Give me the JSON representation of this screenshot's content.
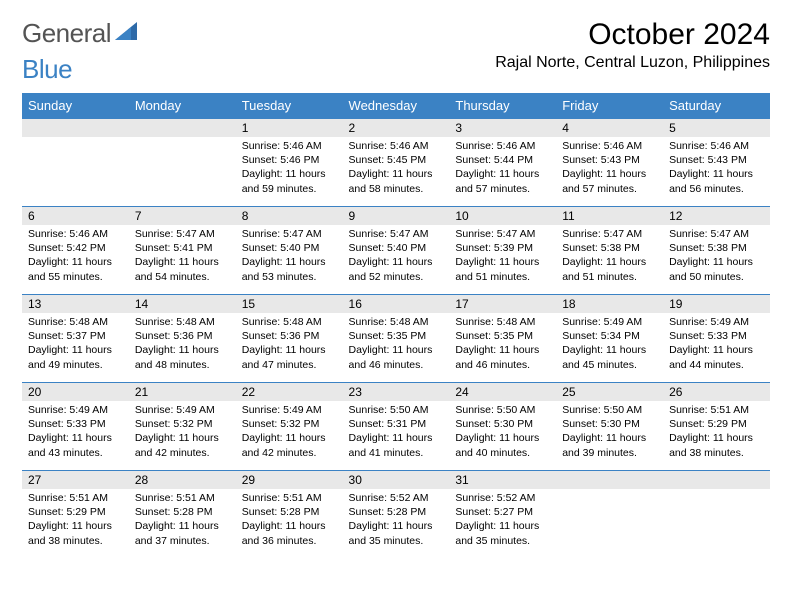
{
  "logo": {
    "part1": "General",
    "part2": "Blue"
  },
  "title": "October 2024",
  "location": "Rajal Norte, Central Luzon, Philippines",
  "colors": {
    "header_bg": "#3b82c4",
    "header_text": "#ffffff",
    "daynum_bg": "#e8e8e8",
    "border": "#3b82c4",
    "logo_gray": "#545454",
    "logo_blue": "#3b82c4"
  },
  "weekdays": [
    "Sunday",
    "Monday",
    "Tuesday",
    "Wednesday",
    "Thursday",
    "Friday",
    "Saturday"
  ],
  "weeks": [
    [
      null,
      null,
      {
        "n": "1",
        "sr": "5:46 AM",
        "ss": "5:46 PM",
        "dl": "11 hours and 59 minutes."
      },
      {
        "n": "2",
        "sr": "5:46 AM",
        "ss": "5:45 PM",
        "dl": "11 hours and 58 minutes."
      },
      {
        "n": "3",
        "sr": "5:46 AM",
        "ss": "5:44 PM",
        "dl": "11 hours and 57 minutes."
      },
      {
        "n": "4",
        "sr": "5:46 AM",
        "ss": "5:43 PM",
        "dl": "11 hours and 57 minutes."
      },
      {
        "n": "5",
        "sr": "5:46 AM",
        "ss": "5:43 PM",
        "dl": "11 hours and 56 minutes."
      }
    ],
    [
      {
        "n": "6",
        "sr": "5:46 AM",
        "ss": "5:42 PM",
        "dl": "11 hours and 55 minutes."
      },
      {
        "n": "7",
        "sr": "5:47 AM",
        "ss": "5:41 PM",
        "dl": "11 hours and 54 minutes."
      },
      {
        "n": "8",
        "sr": "5:47 AM",
        "ss": "5:40 PM",
        "dl": "11 hours and 53 minutes."
      },
      {
        "n": "9",
        "sr": "5:47 AM",
        "ss": "5:40 PM",
        "dl": "11 hours and 52 minutes."
      },
      {
        "n": "10",
        "sr": "5:47 AM",
        "ss": "5:39 PM",
        "dl": "11 hours and 51 minutes."
      },
      {
        "n": "11",
        "sr": "5:47 AM",
        "ss": "5:38 PM",
        "dl": "11 hours and 51 minutes."
      },
      {
        "n": "12",
        "sr": "5:47 AM",
        "ss": "5:38 PM",
        "dl": "11 hours and 50 minutes."
      }
    ],
    [
      {
        "n": "13",
        "sr": "5:48 AM",
        "ss": "5:37 PM",
        "dl": "11 hours and 49 minutes."
      },
      {
        "n": "14",
        "sr": "5:48 AM",
        "ss": "5:36 PM",
        "dl": "11 hours and 48 minutes."
      },
      {
        "n": "15",
        "sr": "5:48 AM",
        "ss": "5:36 PM",
        "dl": "11 hours and 47 minutes."
      },
      {
        "n": "16",
        "sr": "5:48 AM",
        "ss": "5:35 PM",
        "dl": "11 hours and 46 minutes."
      },
      {
        "n": "17",
        "sr": "5:48 AM",
        "ss": "5:35 PM",
        "dl": "11 hours and 46 minutes."
      },
      {
        "n": "18",
        "sr": "5:49 AM",
        "ss": "5:34 PM",
        "dl": "11 hours and 45 minutes."
      },
      {
        "n": "19",
        "sr": "5:49 AM",
        "ss": "5:33 PM",
        "dl": "11 hours and 44 minutes."
      }
    ],
    [
      {
        "n": "20",
        "sr": "5:49 AM",
        "ss": "5:33 PM",
        "dl": "11 hours and 43 minutes."
      },
      {
        "n": "21",
        "sr": "5:49 AM",
        "ss": "5:32 PM",
        "dl": "11 hours and 42 minutes."
      },
      {
        "n": "22",
        "sr": "5:49 AM",
        "ss": "5:32 PM",
        "dl": "11 hours and 42 minutes."
      },
      {
        "n": "23",
        "sr": "5:50 AM",
        "ss": "5:31 PM",
        "dl": "11 hours and 41 minutes."
      },
      {
        "n": "24",
        "sr": "5:50 AM",
        "ss": "5:30 PM",
        "dl": "11 hours and 40 minutes."
      },
      {
        "n": "25",
        "sr": "5:50 AM",
        "ss": "5:30 PM",
        "dl": "11 hours and 39 minutes."
      },
      {
        "n": "26",
        "sr": "5:51 AM",
        "ss": "5:29 PM",
        "dl": "11 hours and 38 minutes."
      }
    ],
    [
      {
        "n": "27",
        "sr": "5:51 AM",
        "ss": "5:29 PM",
        "dl": "11 hours and 38 minutes."
      },
      {
        "n": "28",
        "sr": "5:51 AM",
        "ss": "5:28 PM",
        "dl": "11 hours and 37 minutes."
      },
      {
        "n": "29",
        "sr": "5:51 AM",
        "ss": "5:28 PM",
        "dl": "11 hours and 36 minutes."
      },
      {
        "n": "30",
        "sr": "5:52 AM",
        "ss": "5:28 PM",
        "dl": "11 hours and 35 minutes."
      },
      {
        "n": "31",
        "sr": "5:52 AM",
        "ss": "5:27 PM",
        "dl": "11 hours and 35 minutes."
      },
      null,
      null
    ]
  ],
  "labels": {
    "sunrise": "Sunrise:",
    "sunset": "Sunset:",
    "daylight": "Daylight:"
  }
}
